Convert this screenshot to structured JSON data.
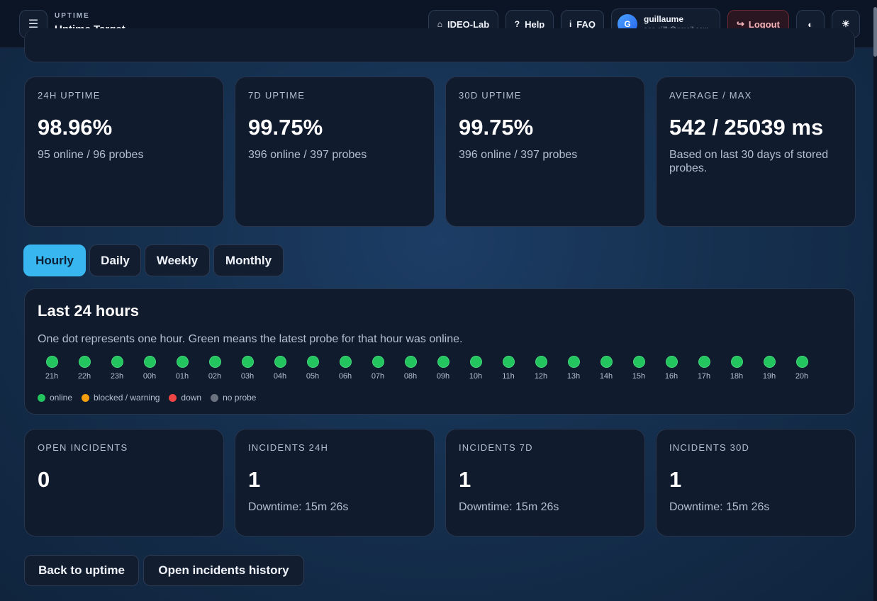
{
  "header": {
    "kicker": "UPTIME",
    "title": "Uptime Target",
    "menu_icon": "☰",
    "buttons": {
      "lab": {
        "icon": "⌂",
        "label": "IDEO-Lab"
      },
      "help": {
        "icon": "?",
        "label": "Help"
      },
      "faq": {
        "icon": "i",
        "label": "FAQ"
      }
    },
    "user": {
      "initial": "G",
      "name": "guillaume",
      "email": "gon.siilk@gmail.com"
    },
    "logout": {
      "icon": "↪",
      "label": "Logout"
    },
    "contrast_icon": "◐",
    "theme_icon": "☀"
  },
  "stats": [
    {
      "label": "24H UPTIME",
      "value": "98.96%",
      "sub": "95 online / 96 probes"
    },
    {
      "label": "7D UPTIME",
      "value": "99.75%",
      "sub": "396 online / 397 probes"
    },
    {
      "label": "30D UPTIME",
      "value": "99.75%",
      "sub": "396 online / 397 probes"
    },
    {
      "label": "AVERAGE / MAX",
      "value": "542 / 25039 ms",
      "sub": "Based on last 30 days of stored probes."
    }
  ],
  "tabs": [
    "Hourly",
    "Daily",
    "Weekly",
    "Monthly"
  ],
  "active_tab": "Hourly",
  "hourly": {
    "title": "Last 24 hours",
    "description": "One dot represents one hour. Green means the latest probe for that hour was online.",
    "hours": [
      {
        "label": "21h",
        "status": "online"
      },
      {
        "label": "22h",
        "status": "online"
      },
      {
        "label": "23h",
        "status": "online"
      },
      {
        "label": "00h",
        "status": "online"
      },
      {
        "label": "01h",
        "status": "online"
      },
      {
        "label": "02h",
        "status": "online"
      },
      {
        "label": "03h",
        "status": "online"
      },
      {
        "label": "04h",
        "status": "online"
      },
      {
        "label": "05h",
        "status": "online"
      },
      {
        "label": "06h",
        "status": "online"
      },
      {
        "label": "07h",
        "status": "online"
      },
      {
        "label": "08h",
        "status": "online"
      },
      {
        "label": "09h",
        "status": "online"
      },
      {
        "label": "10h",
        "status": "online"
      },
      {
        "label": "11h",
        "status": "online"
      },
      {
        "label": "12h",
        "status": "online"
      },
      {
        "label": "13h",
        "status": "online"
      },
      {
        "label": "14h",
        "status": "online"
      },
      {
        "label": "15h",
        "status": "online"
      },
      {
        "label": "16h",
        "status": "online"
      },
      {
        "label": "17h",
        "status": "online"
      },
      {
        "label": "18h",
        "status": "online"
      },
      {
        "label": "19h",
        "status": "online"
      },
      {
        "label": "20h",
        "status": "online"
      }
    ],
    "legend": [
      {
        "label": "online",
        "color": "#22c55e"
      },
      {
        "label": "blocked / warning",
        "color": "#f59e0b"
      },
      {
        "label": "down",
        "color": "#ef4444"
      },
      {
        "label": "no probe",
        "color": "#6b7280"
      }
    ]
  },
  "incidents": [
    {
      "label": "OPEN INCIDENTS",
      "value": "0",
      "sub": ""
    },
    {
      "label": "INCIDENTS 24H",
      "value": "1",
      "sub": "Downtime: 15m 26s"
    },
    {
      "label": "INCIDENTS 7D",
      "value": "1",
      "sub": "Downtime: 15m 26s"
    },
    {
      "label": "INCIDENTS 30D",
      "value": "1",
      "sub": "Downtime: 15m 26s"
    }
  ],
  "actions": {
    "back": "Back to uptime",
    "history": "Open incidents history"
  }
}
